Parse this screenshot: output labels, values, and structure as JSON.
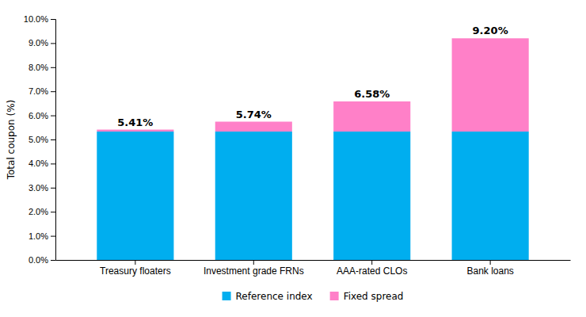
{
  "chart_data": {
    "type": "bar",
    "stacked": true,
    "categories": [
      "Treasury floaters",
      "Investment grade FRNs",
      "AAA-rated CLOs",
      "Bank loans"
    ],
    "series": [
      {
        "name": "Reference index",
        "color": "#00AEEF",
        "values": [
          5.33,
          5.33,
          5.33,
          5.33
        ]
      },
      {
        "name": "Fixed spread",
        "color": "#FF80C8",
        "values": [
          0.08,
          0.41,
          1.25,
          3.87
        ]
      }
    ],
    "totals": [
      5.41,
      5.74,
      6.58,
      9.2
    ],
    "total_labels": [
      "5.41%",
      "5.74%",
      "6.58%",
      "9.20%"
    ],
    "ylabel": "Total coupon (%)",
    "ylim": [
      0,
      10.0
    ],
    "yticks": [
      {
        "value": 0.0,
        "label": "0.0%"
      },
      {
        "value": 1.0,
        "label": "1.0%"
      },
      {
        "value": 2.0,
        "label": "2.0%"
      },
      {
        "value": 3.0,
        "label": "3.0%"
      },
      {
        "value": 4.0,
        "label": "4.0%"
      },
      {
        "value": 5.0,
        "label": "5.0%"
      },
      {
        "value": 6.0,
        "label": "6.0%"
      },
      {
        "value": 7.0,
        "label": "7.0%"
      },
      {
        "value": 8.0,
        "label": "8.0%"
      },
      {
        "value": 9.0,
        "label": "9.0%"
      },
      {
        "value": 10.0,
        "label": "10.0%"
      }
    ],
    "grid": false,
    "legend": "bottom"
  }
}
